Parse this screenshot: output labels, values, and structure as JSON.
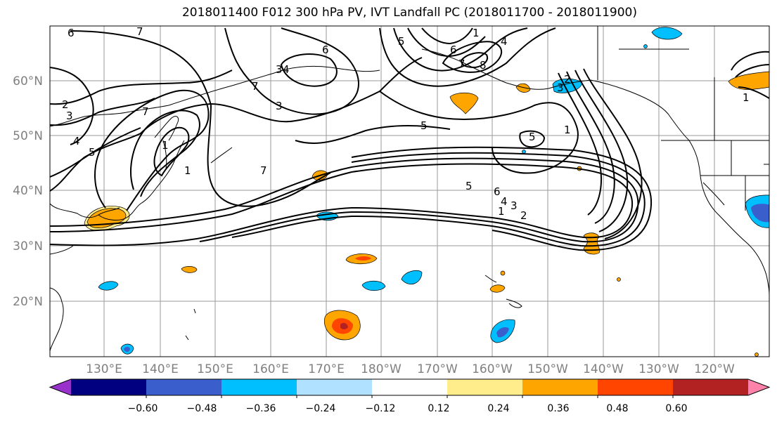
{
  "title": "2018011400 F012 300 hPa PV, IVT Landfall PC (2018011700 - 2018011900)",
  "latitude_labels": [
    "60°N",
    "50°N",
    "40°N",
    "30°N",
    "20°N"
  ],
  "longitude_labels": [
    "130°E",
    "140°E",
    "150°E",
    "160°E",
    "170°E",
    "180°W",
    "170°W",
    "160°W",
    "150°W",
    "140°W",
    "130°W",
    "120°W"
  ],
  "colorbar": {
    "tick_labels": [
      "−0.60",
      "−0.48",
      "−0.36",
      "−0.24",
      "−0.12",
      "0.12",
      "0.24",
      "0.36",
      "0.48",
      "0.60"
    ],
    "colors": [
      "#9932CC",
      "#000080",
      "#3A5FCD",
      "#00BFFF",
      "#B0E2FF",
      "#FFFFFF",
      "#FFEC8B",
      "#FFA500",
      "#FF4500",
      "#B22222",
      "#FF82AB"
    ]
  },
  "contour_labels": [
    "6",
    "7",
    "6",
    "1",
    "3",
    "4",
    "5",
    "6",
    "7",
    "4",
    "8",
    "3",
    "2",
    "7",
    "3",
    "4",
    "5",
    "5",
    "1",
    "1",
    "7",
    "5",
    "5",
    "6",
    "4",
    "3",
    "2",
    "1",
    "1",
    "3",
    "2",
    "1",
    "7"
  ]
}
